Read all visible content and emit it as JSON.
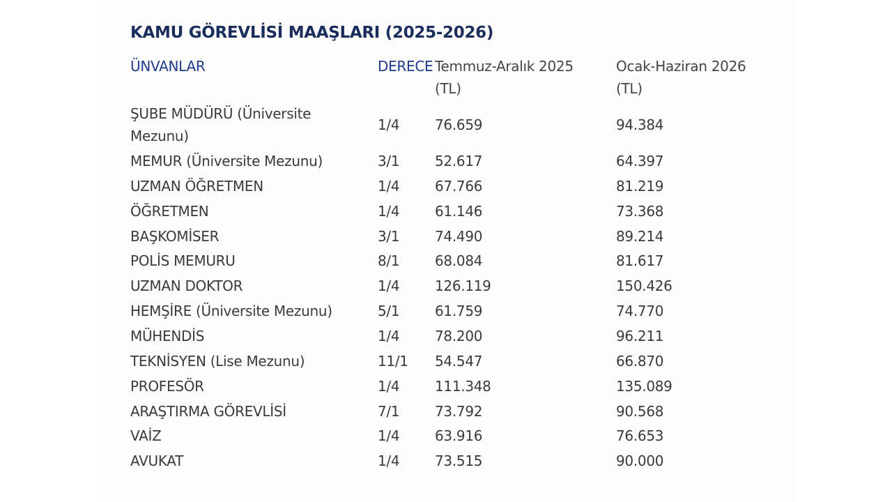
{
  "title": "KAMU GÖREVLİSİ MAAŞLARI (2025-2026)",
  "table": {
    "header": [
      "ÜNVANLAR",
      "DERECE",
      "Temmuz-Aralık 2025 (TL)",
      "Ocak-Haziran 2026 (TL)"
    ],
    "rows": [
      [
        "ŞUBE MÜDÜRÜ (Üniversite Mezunu)",
        "1/4",
        "76.659",
        "94.384"
      ],
      [
        "MEMUR (Üniversite Mezunu)",
        "3/1",
        "52.617",
        "64.397"
      ],
      [
        "UZMAN ÖĞRETMEN",
        "1/4",
        "67.766",
        "81.219"
      ],
      [
        "ÖĞRETMEN",
        "1/4",
        "61.146",
        "73.368"
      ],
      [
        "BAŞKOMİSER",
        "3/1",
        "74.490",
        "89.214"
      ],
      [
        "POLİS MEMURU",
        "8/1",
        "68.084",
        "81.617"
      ],
      [
        "UZMAN DOKTOR",
        "1/4",
        "126.119",
        "150.426"
      ],
      [
        "HEMŞİRE (Üniversite Mezunu)",
        "5/1",
        "61.759",
        "74.770"
      ],
      [
        "MÜHENDİS",
        "1/4",
        "78.200",
        "96.211"
      ],
      [
        "TEKNİSYEN (Lise Mezunu)",
        "11/1",
        "54.547",
        "66.870"
      ],
      [
        "PROFESÖR",
        "1/4",
        "111.348",
        "135.089"
      ],
      [
        "ARAŞTIRMA GÖREVLİSİ",
        "7/1",
        "73.792",
        "90.568"
      ],
      [
        "VAİZ",
        "1/4",
        "63.916",
        "76.653"
      ],
      [
        "AVUKAT",
        "1/4",
        "73.515",
        "90.000"
      ]
    ]
  }
}
